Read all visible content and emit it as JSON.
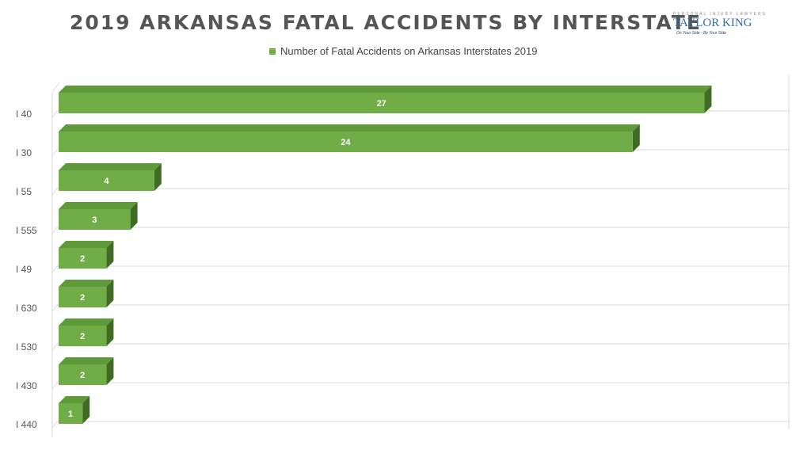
{
  "logo": {
    "tagline": "PERSONAL INJURY LAWYERS",
    "brand": "TAYLOR KING",
    "slogan": "On Your Side - By Your Side"
  },
  "chart_data": {
    "type": "bar",
    "orientation": "horizontal",
    "style": "3d",
    "title": "2019 ARKANSAS FATAL ACCIDENTS BY INTERSTATE",
    "xlabel": "",
    "ylabel": "",
    "xlim": [
      0,
      30
    ],
    "grid": true,
    "legend_position": "top",
    "categories": [
      "I 40",
      "I 30",
      "I 55",
      "I 555",
      "I 49",
      "I 630",
      "I 530",
      "I 430",
      "I 440"
    ],
    "series": [
      {
        "name": "Number of Fatal Accidents on Arkansas Interstates 2019",
        "values": [
          27,
          24,
          4,
          3,
          2,
          2,
          2,
          2,
          1
        ],
        "color": "#70ad47"
      }
    ]
  },
  "colors": {
    "bar_front": "#70ad47",
    "bar_top": "#5f9a3a",
    "bar_side": "#3f6b25",
    "grid": "#d9d9d9"
  }
}
